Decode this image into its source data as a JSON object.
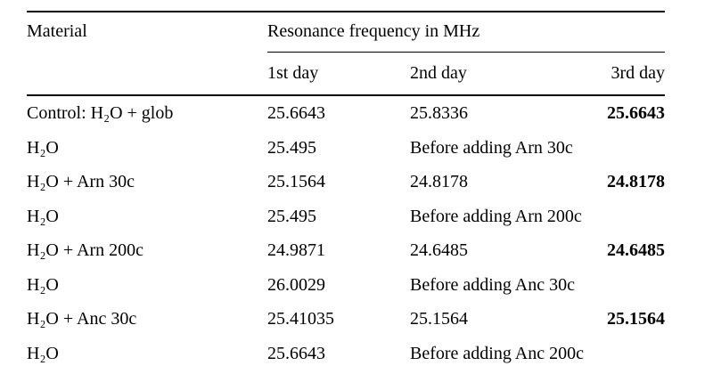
{
  "table": {
    "header": {
      "material": "Material",
      "group": "Resonance frequency in MHz",
      "day1": "1st day",
      "day2": "2nd day",
      "day3": "3rd day"
    },
    "rows": [
      {
        "material": "Control: H₂O + glob",
        "day1": "25.6643",
        "day2": "25.8336",
        "day3": "25.6643"
      },
      {
        "material": "H₂O",
        "day1": "25.495",
        "note": "Before adding Arn 30c"
      },
      {
        "material": "H₂O + Arn 30c",
        "day1": "25.1564",
        "day2": "24.8178",
        "day3": "24.8178"
      },
      {
        "material": "H₂O",
        "day1": "25.495",
        "note": "Before adding Arn 200c"
      },
      {
        "material": "H₂O + Arn 200c",
        "day1": "24.9871",
        "day2": "24.6485",
        "day3": "24.6485"
      },
      {
        "material": "H₂O",
        "day1": "26.0029",
        "note": "Before adding Anc 30c"
      },
      {
        "material": "H₂O + Anc 30c",
        "day1": "25.41035",
        "day2": "25.1564",
        "day3": "25.1564"
      },
      {
        "material": "H₂O",
        "day1": "25.6643",
        "note": "Before adding Anc 200c"
      }
    ],
    "colors": {
      "text": "#000000",
      "background": "#ffffff",
      "rule": "#000000"
    }
  }
}
